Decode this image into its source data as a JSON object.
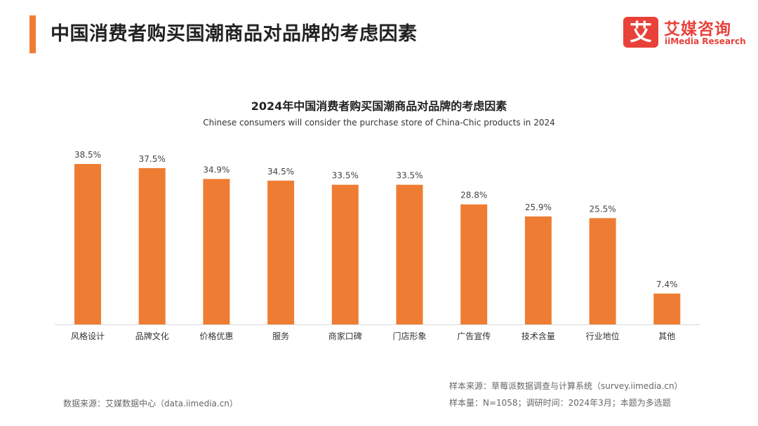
{
  "header": {
    "title": "中国消费者购买国潮商品对品牌的考虑因素",
    "logo_mark": "艾",
    "logo_cn": "艾媒咨询",
    "logo_en": "iiMedia Research"
  },
  "chart_data": {
    "type": "bar",
    "title": "2024年中国消费者购买国潮商品对品牌的考虑因素",
    "subtitle": "Chinese consumers will consider the purchase store of China-Chic products in 2024",
    "categories": [
      "风格设计",
      "品牌文化",
      "价格优惠",
      "服务",
      "商家口碑",
      "门店形象",
      "广告宣传",
      "技术含量",
      "行业地位",
      "其他"
    ],
    "values": [
      38.5,
      37.5,
      34.9,
      34.5,
      33.5,
      33.5,
      28.8,
      25.9,
      25.5,
      7.4
    ],
    "value_labels": [
      "38.5%",
      "37.5%",
      "34.9%",
      "34.5%",
      "33.5%",
      "33.5%",
      "28.8%",
      "25.9%",
      "25.5%",
      "7.4%"
    ],
    "unit": "%",
    "ylim": [
      0,
      40
    ],
    "grid": false,
    "bar_color": "#ee7d33"
  },
  "footer": {
    "data_source": "数据来源：艾媒数据中心（data.iimedia.cn）",
    "sample_source": "样本来源：草莓派数据调查与计算系统（survey.iimedia.cn）",
    "sample_size": "样本量：N=1058；调研时间：2024年3月；本题为多选题"
  }
}
